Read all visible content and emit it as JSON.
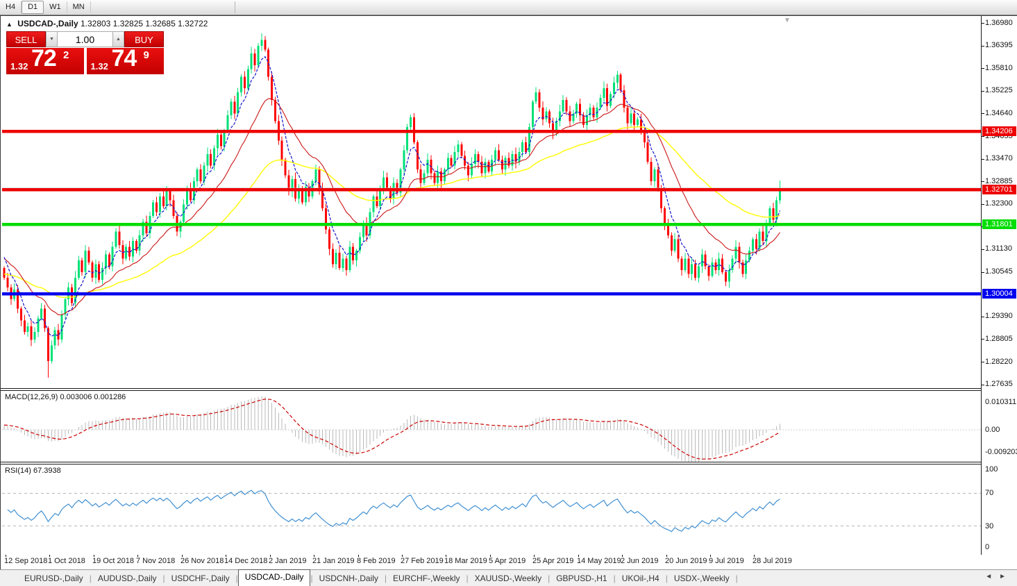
{
  "toolbar": {
    "timeframes": [
      "H4",
      "D1",
      "W1",
      "MN"
    ],
    "active": "D1"
  },
  "chart": {
    "header": {
      "symbol": "USDCAD-,Daily",
      "ohlc": "1.32803 1.32825 1.32685 1.32722"
    },
    "trade_panel": {
      "sell_label": "SELL",
      "buy_label": "BUY",
      "volume": "1.00",
      "sell_price": {
        "prefix": "1.32",
        "big": "72",
        "sup": "2"
      },
      "buy_price": {
        "prefix": "1.32",
        "big": "74",
        "sup": "9"
      }
    },
    "price_axis_ticks": [
      "1.36980",
      "1.36395",
      "1.35810",
      "1.35225",
      "1.34640",
      "1.34055",
      "1.33470",
      "1.32885",
      "1.32300",
      "1.31715",
      "1.31130",
      "1.30545",
      "1.29390",
      "1.28805",
      "1.28220",
      "1.27635"
    ],
    "hlines": [
      {
        "value": 1.34206,
        "label": "1.34206",
        "color": "#ee0000"
      },
      {
        "value": 1.32701,
        "label": "1.32701",
        "color": "#ee0000"
      },
      {
        "value": 1.31801,
        "label": "1.31801",
        "color": "#00dd00"
      },
      {
        "value": 1.30004,
        "label": "1.30004",
        "color": "#0000ee"
      }
    ],
    "bid_line": {
      "value": 1.32722,
      "color": "#b4b4b4"
    },
    "colors": {
      "up_candle": "#00e077",
      "down_candle": "#ff0000",
      "ma_fast": "#1515cc",
      "ma_mid": "#cc1515",
      "ma_slow": "#ffff00"
    }
  },
  "chart_data": {
    "type": "candlestick",
    "symbol": "USDCAD",
    "timeframe": "Daily",
    "date_labels": [
      "12 Sep 2018",
      "1 Oct 2018",
      "19 Oct 2018",
      "7 Nov 2018",
      "26 Nov 2018",
      "14 Dec 2018",
      "2 Jan 2019",
      "21 Jan 2019",
      "8 Feb 2019",
      "27 Feb 2019",
      "18 Mar 2019",
      "5 Apr 2019",
      "25 Apr 2019",
      "14 May 2019",
      "2 Jun 2019",
      "20 Jun 2019",
      "9 Jul 2019",
      "28 Jul 2019"
    ],
    "bars_per_label": 13,
    "price_range_labels": [
      1.27635,
      1.3698
    ],
    "closes": [
      1.304,
      1.3015,
      1.2985,
      1.301,
      1.296,
      1.293,
      1.29,
      1.2915,
      1.288,
      1.29,
      1.2935,
      1.296,
      1.291,
      1.2825,
      1.2865,
      1.2905,
      1.288,
      1.2945,
      1.2985,
      1.3015,
      1.2975,
      1.304,
      1.3085,
      1.3055,
      1.311,
      1.308,
      1.304,
      1.3075,
      1.3035,
      1.3065,
      1.31,
      1.307,
      1.312,
      1.316,
      1.3125,
      1.309,
      1.312,
      1.3095,
      1.3135,
      1.311,
      1.315,
      1.3185,
      1.3155,
      1.32,
      1.3235,
      1.321,
      1.325,
      1.3225,
      1.3265,
      1.324,
      1.32,
      1.316,
      1.3185,
      1.323,
      1.327,
      1.324,
      1.329,
      1.332,
      1.329,
      1.333,
      1.336,
      1.333,
      1.3375,
      1.341,
      1.338,
      1.342,
      1.346,
      1.3495,
      1.3465,
      1.352,
      1.356,
      1.353,
      1.358,
      1.362,
      1.359,
      1.364,
      1.3655,
      1.363,
      1.356,
      1.35,
      1.3445,
      1.3395,
      1.3345,
      1.3305,
      1.3265,
      1.3295,
      1.3245,
      1.327,
      1.3235,
      1.3275,
      1.325,
      1.329,
      1.332,
      1.327,
      1.322,
      1.3165,
      1.3115,
      1.3075,
      1.3105,
      1.3065,
      1.309,
      1.306,
      1.312,
      1.3085,
      1.311,
      1.3145,
      1.318,
      1.315,
      1.321,
      1.325,
      1.3225,
      1.327,
      1.33,
      1.327,
      1.3245,
      1.3285,
      1.326,
      1.332,
      1.337,
      1.343,
      1.3455,
      1.339,
      1.332,
      1.3285,
      1.331,
      1.3345,
      1.331,
      1.3285,
      1.3315,
      1.329,
      1.332,
      1.335,
      1.333,
      1.3365,
      1.3385,
      1.3355,
      1.333,
      1.3305,
      1.3335,
      1.336,
      1.334,
      1.331,
      1.334,
      1.3315,
      1.3345,
      1.337,
      1.3345,
      1.332,
      1.335,
      1.333,
      1.336,
      1.334,
      1.3365,
      1.339,
      1.3365,
      1.343,
      1.3495,
      1.352,
      1.348,
      1.345,
      1.347,
      1.344,
      1.3415,
      1.3445,
      1.347,
      1.35,
      1.347,
      1.3445,
      1.3465,
      1.349,
      1.346,
      1.3435,
      1.346,
      1.348,
      1.3455,
      1.348,
      1.3505,
      1.353,
      1.3485,
      1.3515,
      1.3545,
      1.3565,
      1.3525,
      1.348,
      1.344,
      1.3465,
      1.3435,
      1.345,
      1.342,
      1.339,
      1.334,
      1.329,
      1.332,
      1.327,
      1.322,
      1.318,
      1.315,
      1.311,
      1.314,
      1.309,
      1.306,
      1.309,
      1.305,
      1.3075,
      1.304,
      1.307,
      1.31,
      1.307,
      1.3045,
      1.308,
      1.306,
      1.309,
      1.3055,
      1.303,
      1.306,
      1.309,
      1.312,
      1.308,
      1.305,
      1.3085,
      1.311,
      1.314,
      1.3115,
      1.316,
      1.3135,
      1.318,
      1.322,
      1.319,
      1.324,
      1.3272
    ],
    "wick_overrides": {
      "13": {
        "low": 1.2782
      },
      "76": {
        "high": 1.3672
      },
      "120": {
        "high": 1.3462
      },
      "229": {
        "high": 1.3292
      }
    },
    "moving_averages": [
      {
        "name": "fast",
        "period": 6,
        "style": "dashed"
      },
      {
        "name": "mid",
        "period": 20,
        "style": "solid"
      },
      {
        "name": "slow",
        "period": 55,
        "style": "solid"
      }
    ]
  },
  "macd": {
    "label": "MACD(12,26,9)",
    "values": "0.003006 0.001286",
    "axis_top": "0.010311",
    "axis_zero": "0.00",
    "axis_bottom": "-0.009203",
    "params": {
      "fast": 12,
      "slow": 26,
      "signal": 9
    },
    "hist_color": "#b9b9b9",
    "signal_color": "#cc0000"
  },
  "rsi": {
    "label": "RSI(14)",
    "value": "67.3938",
    "axis_top": "100",
    "axis_hi": "70",
    "axis_lo": "30",
    "axis_bottom": "0",
    "period": 14,
    "levels": [
      70,
      30
    ],
    "line_color": "#3f8fd2"
  },
  "tabs": {
    "items": [
      "EURUSD-,Daily",
      "AUDUSD-,Daily",
      "USDCHF-,Daily",
      "USDCAD-,Daily",
      "USDCNH-,Daily",
      "EURCHF-,Weekly",
      "XAUUSD-,Weekly",
      "GBPUSD-,H1",
      "UKOil-,H4",
      "USDX-,Weekly"
    ],
    "active_index": 3,
    "left_arrow": "◄",
    "right_arrow": "►"
  }
}
